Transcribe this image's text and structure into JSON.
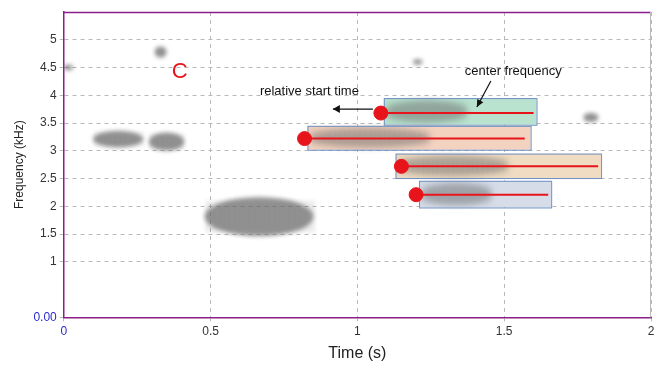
{
  "chart_data": {
    "type": "spectrogram",
    "panel_label": "C",
    "x_label": "Time (s)",
    "y_label": "Frequency (kHz)",
    "xlim": [
      0,
      2
    ],
    "ylim": [
      0,
      5.5
    ],
    "xticks": [
      0,
      0.5,
      1,
      1.5,
      2
    ],
    "yticks": [
      {
        "value": 0,
        "label": "0.00"
      },
      1,
      1.5,
      2,
      2.5,
      3,
      3.5,
      4,
      4.5,
      5
    ],
    "grid": true,
    "color": "#e8141b",
    "marker": "circle",
    "sound_events": [
      {
        "time": [
          0.0,
          0.03
        ],
        "frequency": [
          4.45,
          4.55
        ]
      },
      {
        "time": [
          0.31,
          0.35
        ],
        "frequency": [
          4.68,
          4.88
        ]
      },
      {
        "time": [
          0.1,
          0.27
        ],
        "frequency": [
          3.06,
          3.36
        ]
      },
      {
        "time": [
          0.29,
          0.41
        ],
        "frequency": [
          3.0,
          3.33
        ]
      },
      {
        "time": [
          0.48,
          0.85
        ],
        "frequency": [
          1.46,
          2.17
        ]
      },
      {
        "time": [
          1.19,
          1.22
        ],
        "frequency": [
          4.55,
          4.65
        ]
      },
      {
        "time": [
          1.77,
          1.82
        ],
        "frequency": [
          3.52,
          3.68
        ]
      }
    ],
    "detections": [
      {
        "time": [
          1.09,
          1.61
        ],
        "frequency": [
          3.47,
          3.95
        ],
        "start_time": 1.08,
        "end_time": 1.6,
        "center_frequency": 3.68,
        "color": "#b9e3cf"
      },
      {
        "time": [
          0.83,
          1.59
        ],
        "frequency": [
          3.02,
          3.45
        ],
        "start_time": 0.82,
        "end_time": 1.57,
        "center_frequency": 3.22,
        "color": "#f3d3c0"
      },
      {
        "time": [
          1.13,
          1.83
        ],
        "frequency": [
          2.51,
          2.95
        ],
        "start_time": 1.15,
        "end_time": 1.82,
        "center_frequency": 2.72,
        "color": "#f0dcc2"
      },
      {
        "time": [
          1.21,
          1.66
        ],
        "frequency": [
          1.98,
          2.46
        ],
        "start_time": 1.2,
        "end_time": 1.65,
        "center_frequency": 2.21,
        "color": "#d6dde9"
      }
    ],
    "annotations": [
      "relative start time",
      "center frequency"
    ]
  }
}
